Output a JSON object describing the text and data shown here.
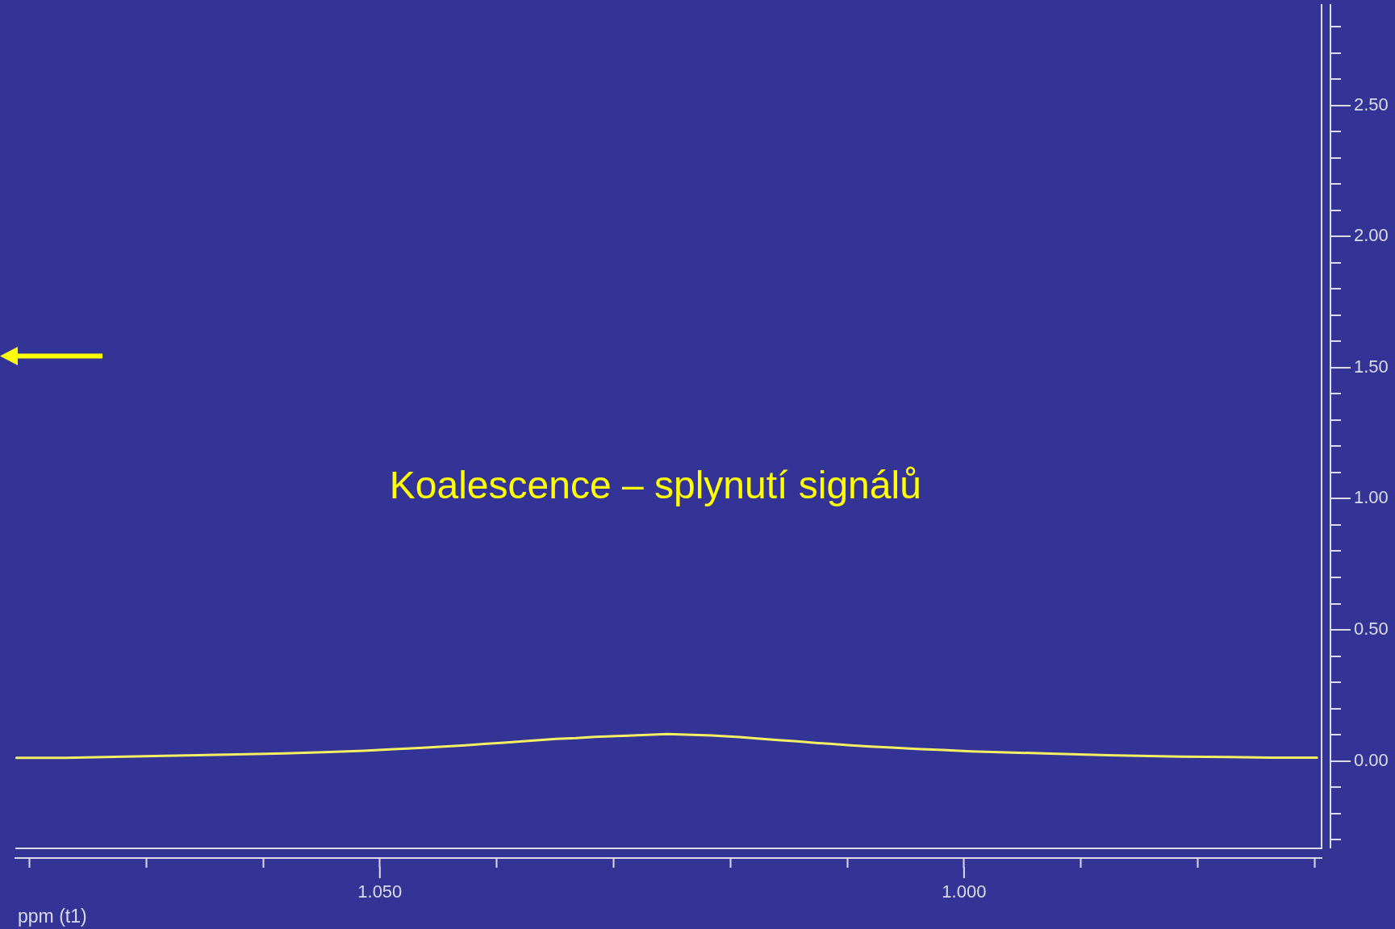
{
  "chart_data": {
    "type": "line",
    "xlabel": "ppm (t1)",
    "annotations": [
      "Koalescence – splynutí signálů"
    ],
    "x": [
      1.0811,
      1.0769,
      1.0693,
      1.0631,
      1.0582,
      1.0543,
      1.0514,
      1.0488,
      1.0466,
      1.0445,
      1.0427,
      1.0411,
      1.0394,
      1.038,
      1.0366,
      1.0349,
      1.0332,
      1.0316,
      1.0292,
      1.0254,
      1.0216,
      1.0192,
      1.0175,
      1.0159,
      1.0143,
      1.0127,
      1.0113,
      1.0097,
      1.008,
      1.0062,
      1.004,
      1.0018,
      0.9994,
      0.9964,
      0.9926,
      0.9877,
      0.9815,
      0.9738,
      0.9698
    ],
    "series": [
      {
        "color": "#f5f062",
        "values": [
          0.012,
          0.012,
          0.019,
          0.024,
          0.029,
          0.034,
          0.039,
          0.045,
          0.05,
          0.055,
          0.06,
          0.065,
          0.07,
          0.074,
          0.079,
          0.084,
          0.087,
          0.092,
          0.096,
          0.103,
          0.097,
          0.091,
          0.085,
          0.08,
          0.075,
          0.069,
          0.065,
          0.06,
          0.055,
          0.051,
          0.046,
          0.042,
          0.037,
          0.033,
          0.028,
          0.022,
          0.017,
          0.013,
          0.013
        ]
      }
    ],
    "xlim": [
      1.0812,
      0.9694
    ],
    "xticks": [
      {
        "value": 1.08,
        "label": null
      },
      {
        "value": 1.07,
        "label": null
      },
      {
        "value": 1.06,
        "label": null
      },
      {
        "value": 1.05,
        "label": "1.050"
      },
      {
        "value": 1.04,
        "label": null
      },
      {
        "value": 1.03,
        "label": null
      },
      {
        "value": 1.02,
        "label": null
      },
      {
        "value": 1.01,
        "label": null
      },
      {
        "value": 1.0,
        "label": "1.000"
      },
      {
        "value": 0.99,
        "label": null
      },
      {
        "value": 0.98,
        "label": null
      },
      {
        "value": 0.97,
        "label": null
      }
    ],
    "ylim": [
      -0.37,
      2.88
    ],
    "yticks": [
      {
        "value": -0.3,
        "label": null
      },
      {
        "value": -0.2,
        "label": null
      },
      {
        "value": -0.1,
        "label": null
      },
      {
        "value": 0,
        "label": "0.00"
      },
      {
        "value": 0.1,
        "label": null
      },
      {
        "value": 0.2,
        "label": null
      },
      {
        "value": 0.3,
        "label": null
      },
      {
        "value": 0.4,
        "label": null
      },
      {
        "value": 0.5,
        "label": "0.50"
      },
      {
        "value": 0.6,
        "label": null
      },
      {
        "value": 0.7,
        "label": null
      },
      {
        "value": 0.8,
        "label": null
      },
      {
        "value": 0.9,
        "label": null
      },
      {
        "value": 1.0,
        "label": "1.00"
      },
      {
        "value": 1.1,
        "label": null
      },
      {
        "value": 1.2,
        "label": null
      },
      {
        "value": 1.3,
        "label": null
      },
      {
        "value": 1.4,
        "label": null
      },
      {
        "value": 1.5,
        "label": "1.50"
      },
      {
        "value": 1.6,
        "label": null
      },
      {
        "value": 1.7,
        "label": null
      },
      {
        "value": 1.8,
        "label": null
      },
      {
        "value": 1.9,
        "label": null
      },
      {
        "value": 2.0,
        "label": "2.00"
      },
      {
        "value": 2.1,
        "label": null
      },
      {
        "value": 2.2,
        "label": null
      },
      {
        "value": 2.3,
        "label": null
      },
      {
        "value": 2.4,
        "label": null
      },
      {
        "value": 2.5,
        "label": "2.50"
      },
      {
        "value": 2.6,
        "label": null
      },
      {
        "value": 2.7,
        "label": null
      },
      {
        "value": 2.8,
        "label": null
      }
    ],
    "marker": "none",
    "line_style": "solid"
  }
}
